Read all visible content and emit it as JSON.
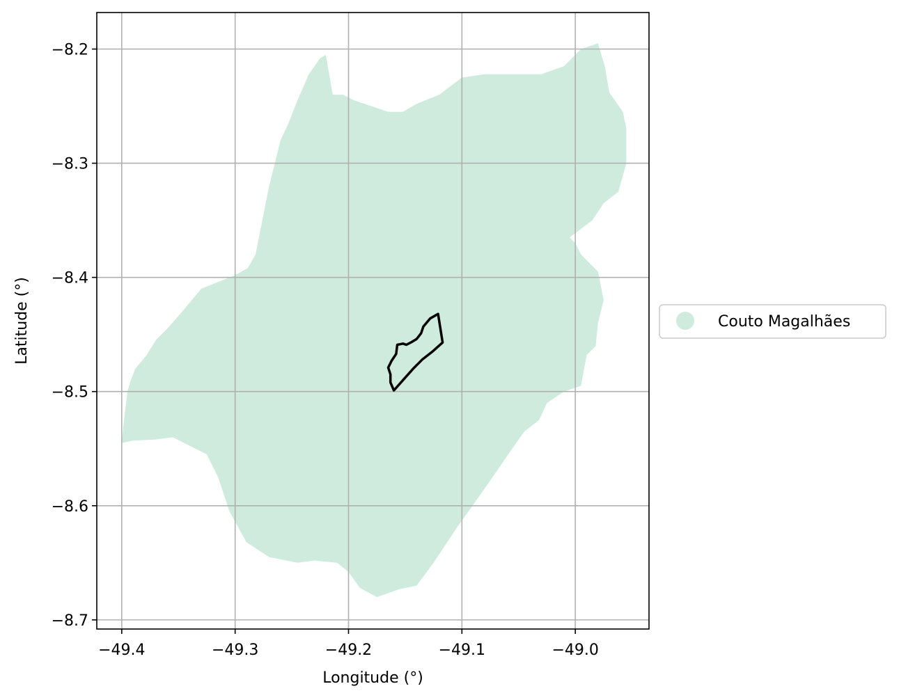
{
  "chart_data": {
    "type": "map",
    "xlabel": "Longitude (°)",
    "ylabel": "Latitude (°)",
    "xlim": [
      -49.422,
      -48.935
    ],
    "ylim": [
      -8.708,
      -8.168
    ],
    "x_ticks": [
      -49.4,
      -49.3,
      -49.2,
      -49.1,
      -49.0
    ],
    "x_tick_labels": [
      "−49.4",
      "−49.3",
      "−49.2",
      "−49.1",
      "−49.0"
    ],
    "y_ticks": [
      -8.2,
      -8.3,
      -8.4,
      -8.5,
      -8.6,
      -8.7
    ],
    "y_tick_labels": [
      "−8.2",
      "−8.3",
      "−8.4",
      "−8.5",
      "−8.6",
      "−8.7"
    ],
    "grid": true,
    "legend": {
      "placement": "right",
      "entries": [
        {
          "label": "Couto Magalhães",
          "color": "#cfebdd"
        }
      ]
    },
    "region_fill_color": "#cfebdd",
    "outline_color": "#000000",
    "region_polygon": [
      [
        -49.4,
        -8.545
      ],
      [
        -49.398,
        -8.525
      ],
      [
        -49.395,
        -8.5
      ],
      [
        -49.392,
        -8.49
      ],
      [
        -49.388,
        -8.48
      ],
      [
        -49.378,
        -8.468
      ],
      [
        -49.37,
        -8.455
      ],
      [
        -49.36,
        -8.445
      ],
      [
        -49.345,
        -8.428
      ],
      [
        -49.33,
        -8.41
      ],
      [
        -49.315,
        -8.404
      ],
      [
        -49.3,
        -8.398
      ],
      [
        -49.289,
        -8.392
      ],
      [
        -49.282,
        -8.38
      ],
      [
        -49.276,
        -8.35
      ],
      [
        -49.27,
        -8.32
      ],
      [
        -49.265,
        -8.3
      ],
      [
        -49.26,
        -8.28
      ],
      [
        -49.253,
        -8.265
      ],
      [
        -49.245,
        -8.245
      ],
      [
        -49.235,
        -8.222
      ],
      [
        -49.225,
        -8.208
      ],
      [
        -49.22,
        -8.205
      ],
      [
        -49.214,
        -8.24
      ],
      [
        -49.205,
        -8.24
      ],
      [
        -49.195,
        -8.245
      ],
      [
        -49.18,
        -8.25
      ],
      [
        -49.165,
        -8.255
      ],
      [
        -49.152,
        -8.255
      ],
      [
        -49.14,
        -8.248
      ],
      [
        -49.12,
        -8.24
      ],
      [
        -49.1,
        -8.225
      ],
      [
        -49.08,
        -8.222
      ],
      [
        -49.06,
        -8.222
      ],
      [
        -49.03,
        -8.222
      ],
      [
        -49.01,
        -8.215
      ],
      [
        -48.995,
        -8.2
      ],
      [
        -48.98,
        -8.195
      ],
      [
        -48.974,
        -8.215
      ],
      [
        -48.97,
        -8.238
      ],
      [
        -48.958,
        -8.255
      ],
      [
        -48.955,
        -8.27
      ],
      [
        -48.955,
        -8.3
      ],
      [
        -48.962,
        -8.325
      ],
      [
        -48.975,
        -8.335
      ],
      [
        -48.985,
        -8.35
      ],
      [
        -49.005,
        -8.365
      ],
      [
        -49.0,
        -8.37
      ],
      [
        -48.995,
        -8.38
      ],
      [
        -48.98,
        -8.395
      ],
      [
        -48.975,
        -8.42
      ],
      [
        -48.98,
        -8.44
      ],
      [
        -48.982,
        -8.46
      ],
      [
        -48.99,
        -8.468
      ],
      [
        -48.995,
        -8.495
      ],
      [
        -49.01,
        -8.5
      ],
      [
        -49.025,
        -8.51
      ],
      [
        -49.032,
        -8.525
      ],
      [
        -49.045,
        -8.535
      ],
      [
        -49.05,
        -8.542
      ],
      [
        -49.08,
        -8.585
      ],
      [
        -49.105,
        -8.62
      ],
      [
        -49.125,
        -8.65
      ],
      [
        -49.14,
        -8.67
      ],
      [
        -49.155,
        -8.673
      ],
      [
        -49.175,
        -8.68
      ],
      [
        -49.19,
        -8.672
      ],
      [
        -49.2,
        -8.658
      ],
      [
        -49.21,
        -8.65
      ],
      [
        -49.23,
        -8.648
      ],
      [
        -49.245,
        -8.65
      ],
      [
        -49.27,
        -8.645
      ],
      [
        -49.29,
        -8.632
      ],
      [
        -49.305,
        -8.605
      ],
      [
        -49.315,
        -8.575
      ],
      [
        -49.325,
        -8.555
      ],
      [
        -49.355,
        -8.54
      ],
      [
        -49.37,
        -8.542
      ],
      [
        -49.39,
        -8.543
      ]
    ],
    "outline_polygon": [
      [
        -49.16,
        -8.499
      ],
      [
        -49.152,
        -8.49
      ],
      [
        -49.143,
        -8.48
      ],
      [
        -49.135,
        -8.472
      ],
      [
        -49.126,
        -8.465
      ],
      [
        -49.117,
        -8.457
      ],
      [
        -49.121,
        -8.432
      ],
      [
        -49.128,
        -8.436
      ],
      [
        -49.134,
        -8.443
      ],
      [
        -49.136,
        -8.449
      ],
      [
        -49.14,
        -8.454
      ],
      [
        -49.145,
        -8.457
      ],
      [
        -49.149,
        -8.459
      ],
      [
        -49.152,
        -8.458
      ],
      [
        -49.157,
        -8.459
      ],
      [
        -49.158,
        -8.467
      ],
      [
        -49.162,
        -8.473
      ],
      [
        -49.165,
        -8.479
      ],
      [
        -49.163,
        -8.485
      ],
      [
        -49.163,
        -8.492
      ]
    ]
  }
}
